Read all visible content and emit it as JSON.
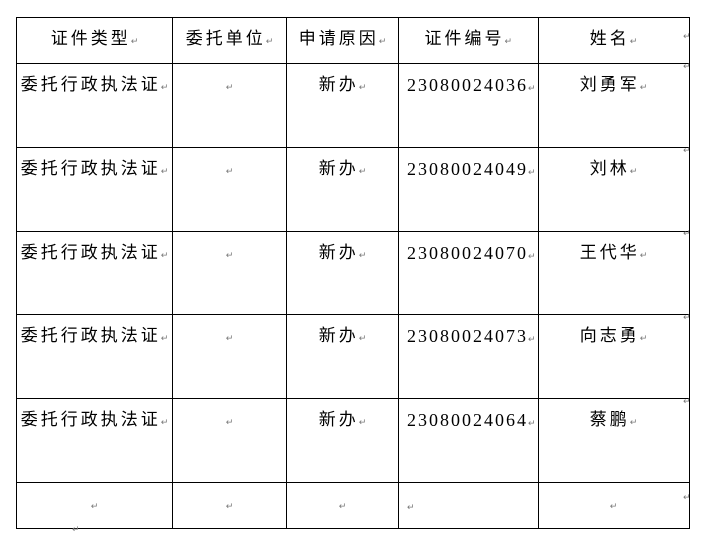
{
  "table": {
    "headers": [
      "证件类型",
      "委托单位",
      "申请原因",
      "证件编号",
      "姓名"
    ],
    "rows": [
      {
        "type": "委托行政执法证",
        "unit": "",
        "reason": "新办",
        "number": "23080024036",
        "name": "刘勇军"
      },
      {
        "type": "委托行政执法证",
        "unit": "",
        "reason": "新办",
        "number": "23080024049",
        "name": "刘林"
      },
      {
        "type": "委托行政执法证",
        "unit": "",
        "reason": "新办",
        "number": "23080024070",
        "name": "王代华"
      },
      {
        "type": "委托行政执法证",
        "unit": "",
        "reason": "新办",
        "number": "23080024073",
        "name": "向志勇"
      },
      {
        "type": "委托行政执法证",
        "unit": "",
        "reason": "新办",
        "number": "23080024064",
        "name": "蔡鹏"
      },
      {
        "type": "",
        "unit": "",
        "reason": "",
        "number": "",
        "name": ""
      }
    ]
  }
}
